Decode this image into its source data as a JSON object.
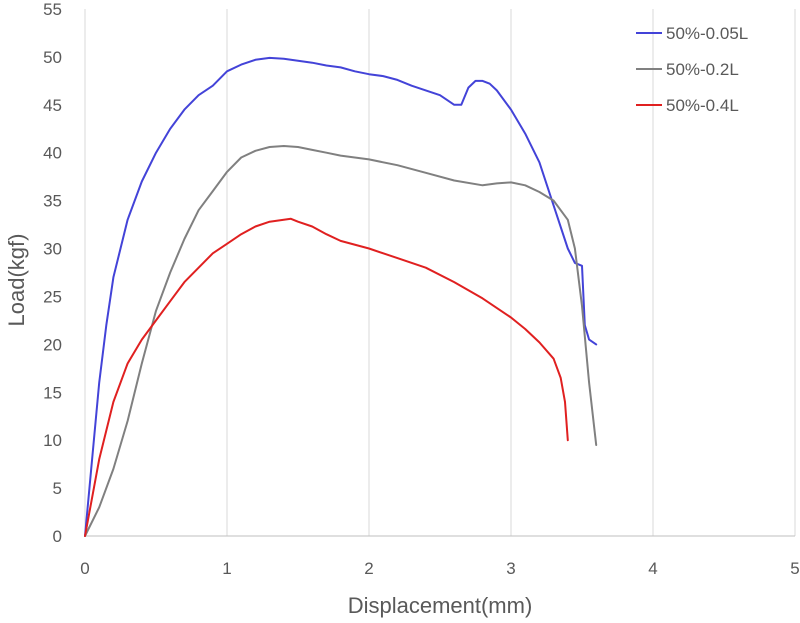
{
  "chart_data": {
    "type": "line",
    "title": "",
    "xlabel": "Displacement(mm)",
    "ylabel": "Load(kgf)",
    "xlim": [
      0,
      5
    ],
    "ylim": [
      0,
      55
    ],
    "xticks": [
      "0",
      "1",
      "2",
      "3",
      "4",
      "5"
    ],
    "yticks": [
      "0",
      "5",
      "10",
      "15",
      "20",
      "25",
      "30",
      "35",
      "40",
      "45",
      "50",
      "55"
    ],
    "grid": "vertical",
    "legend_position": "top-right",
    "series": [
      {
        "name": "50%-0.05L",
        "color": "#4343d8",
        "x": [
          0,
          0.05,
          0.1,
          0.15,
          0.2,
          0.3,
          0.4,
          0.5,
          0.6,
          0.7,
          0.8,
          0.9,
          1.0,
          1.1,
          1.2,
          1.3,
          1.4,
          1.5,
          1.6,
          1.7,
          1.8,
          1.9,
          2.0,
          2.1,
          2.2,
          2.3,
          2.4,
          2.5,
          2.6,
          2.65,
          2.7,
          2.75,
          2.8,
          2.85,
          2.9,
          3.0,
          3.1,
          3.2,
          3.3,
          3.4,
          3.45,
          3.5,
          3.52,
          3.55,
          3.6
        ],
        "y": [
          0,
          8,
          16,
          22,
          27,
          33,
          37,
          40,
          42.5,
          44.5,
          46,
          47,
          48.5,
          49.2,
          49.7,
          49.9,
          49.8,
          49.6,
          49.4,
          49.1,
          48.9,
          48.5,
          48.2,
          48.0,
          47.6,
          47.0,
          46.5,
          46.0,
          45.0,
          45.0,
          46.8,
          47.5,
          47.5,
          47.2,
          46.5,
          44.5,
          42.0,
          39.0,
          34.5,
          30.0,
          28.5,
          28.2,
          22.0,
          20.5,
          20.0
        ]
      },
      {
        "name": "50%-0.2L",
        "color": "#808080",
        "x": [
          0,
          0.1,
          0.2,
          0.3,
          0.4,
          0.5,
          0.6,
          0.7,
          0.8,
          0.9,
          1.0,
          1.1,
          1.2,
          1.3,
          1.4,
          1.5,
          1.6,
          1.7,
          1.8,
          1.9,
          2.0,
          2.2,
          2.4,
          2.6,
          2.8,
          2.9,
          3.0,
          3.1,
          3.2,
          3.3,
          3.4,
          3.45,
          3.5,
          3.55,
          3.6
        ],
        "y": [
          0,
          3,
          7,
          12,
          18,
          23.5,
          27.5,
          31,
          34,
          36,
          38,
          39.5,
          40.2,
          40.6,
          40.7,
          40.6,
          40.3,
          40,
          39.7,
          39.5,
          39.3,
          38.7,
          37.9,
          37.1,
          36.6,
          36.8,
          36.9,
          36.6,
          35.9,
          35.0,
          33.0,
          30.0,
          24.0,
          16.0,
          9.5
        ]
      },
      {
        "name": "50%-0.4L",
        "color": "#e02020",
        "x": [
          0,
          0.05,
          0.1,
          0.2,
          0.3,
          0.4,
          0.5,
          0.6,
          0.7,
          0.8,
          0.9,
          1.0,
          1.1,
          1.2,
          1.3,
          1.4,
          1.45,
          1.5,
          1.6,
          1.7,
          1.8,
          2.0,
          2.2,
          2.4,
          2.6,
          2.8,
          3.0,
          3.1,
          3.2,
          3.3,
          3.35,
          3.38,
          3.39,
          3.4
        ],
        "y": [
          0,
          4,
          8,
          14,
          18,
          20.5,
          22.5,
          24.5,
          26.5,
          28,
          29.5,
          30.5,
          31.5,
          32.3,
          32.8,
          33.0,
          33.1,
          32.8,
          32.3,
          31.5,
          30.8,
          30.0,
          29.0,
          28.0,
          26.5,
          24.8,
          22.8,
          21.6,
          20.2,
          18.5,
          16.5,
          14.0,
          12.0,
          10.0
        ]
      }
    ]
  }
}
